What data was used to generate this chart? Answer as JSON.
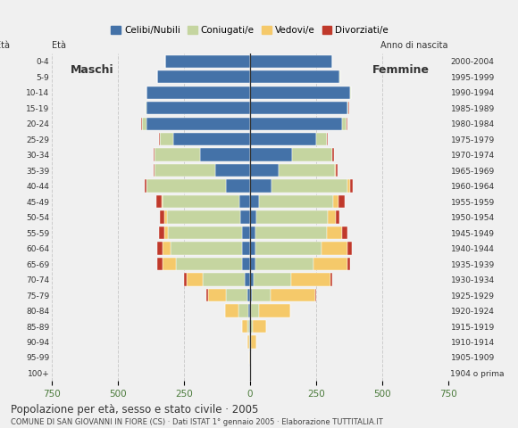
{
  "title": "Popolazione per età, sesso e stato civile · 2005",
  "subtitle": "COMUNE DI SAN GIOVANNI IN FIORE (CS) · Dati ISTAT 1° gennaio 2005 · Elaborazione TUTTITALIA.IT",
  "age_groups": [
    "100+",
    "95-99",
    "90-94",
    "85-89",
    "80-84",
    "75-79",
    "70-74",
    "65-69",
    "60-64",
    "55-59",
    "50-54",
    "45-49",
    "40-44",
    "35-39",
    "30-34",
    "25-29",
    "20-24",
    "15-19",
    "10-14",
    "5-9",
    "0-4"
  ],
  "birth_years": [
    "1904 o prima",
    "1905-1909",
    "1910-1914",
    "1915-1919",
    "1920-1924",
    "1925-1929",
    "1930-1934",
    "1935-1939",
    "1940-1944",
    "1945-1949",
    "1950-1954",
    "1955-1959",
    "1960-1964",
    "1965-1969",
    "1970-1974",
    "1975-1979",
    "1980-1984",
    "1985-1989",
    "1990-1994",
    "1995-1999",
    "2000-2004"
  ],
  "colors": {
    "celibe": "#4472a8",
    "coniugato": "#c5d5a0",
    "vedovo": "#f5c96a",
    "divorziato": "#c0392b"
  },
  "males": {
    "celibe": [
      0,
      0,
      0,
      2,
      5,
      10,
      20,
      30,
      30,
      30,
      35,
      40,
      90,
      130,
      190,
      290,
      390,
      390,
      390,
      350,
      320
    ],
    "coniugato": [
      0,
      0,
      3,
      8,
      40,
      80,
      160,
      250,
      270,
      280,
      280,
      290,
      300,
      230,
      170,
      50,
      20,
      5,
      2,
      1,
      0
    ],
    "vedovo": [
      0,
      2,
      8,
      20,
      50,
      70,
      60,
      50,
      30,
      15,
      10,
      5,
      2,
      1,
      1,
      1,
      0,
      0,
      0,
      0,
      0
    ],
    "divorziato": [
      0,
      0,
      0,
      0,
      0,
      5,
      10,
      20,
      20,
      20,
      15,
      20,
      5,
      5,
      5,
      3,
      2,
      1,
      0,
      0,
      0
    ]
  },
  "females": {
    "celibe": [
      0,
      0,
      1,
      2,
      4,
      8,
      15,
      20,
      20,
      20,
      25,
      35,
      80,
      110,
      160,
      250,
      350,
      370,
      380,
      340,
      310
    ],
    "coniugato": [
      0,
      0,
      3,
      8,
      30,
      70,
      140,
      220,
      250,
      270,
      270,
      280,
      290,
      210,
      150,
      40,
      15,
      4,
      1,
      1,
      0
    ],
    "vedovo": [
      0,
      5,
      20,
      50,
      120,
      170,
      150,
      130,
      100,
      60,
      30,
      20,
      10,
      5,
      3,
      1,
      1,
      0,
      0,
      0,
      0
    ],
    "divorziato": [
      0,
      0,
      0,
      0,
      0,
      3,
      5,
      10,
      15,
      20,
      15,
      25,
      10,
      8,
      5,
      3,
      2,
      1,
      0,
      0,
      0
    ]
  },
  "xlim": 750,
  "background_color": "#f0f0f0",
  "grid_color": "#cccccc"
}
